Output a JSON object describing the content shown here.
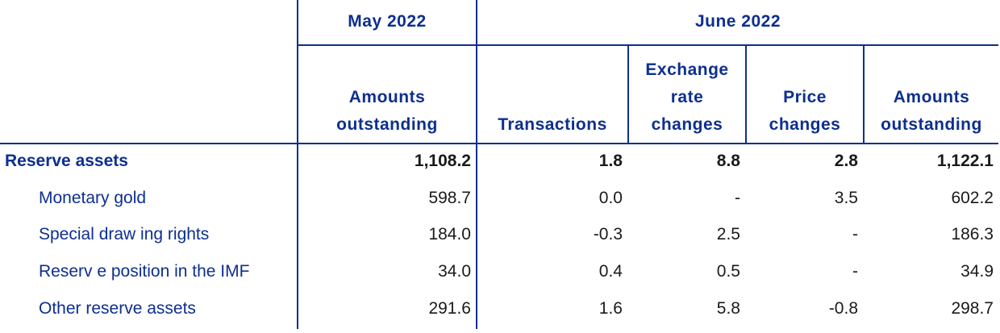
{
  "header": {
    "group_may": "May 2022",
    "group_june": "June 2022",
    "columns": [
      {
        "line1": "",
        "line2": "Amounts",
        "line3": "outstanding"
      },
      {
        "line1": "",
        "line2": "",
        "line3": "Transactions"
      },
      {
        "line1": "Exchange",
        "line2": "rate",
        "line3": "changes"
      },
      {
        "line1": "",
        "line2": "Price",
        "line3": "changes"
      },
      {
        "line1": "",
        "line2": "Amounts",
        "line3": "outstanding"
      }
    ]
  },
  "rows": [
    {
      "label": "Reserve assets",
      "values": [
        "1,108.2",
        "1.8",
        "8.8",
        "2.8",
        "1,122.1"
      ]
    },
    {
      "label": "Monetary gold",
      "values": [
        "598.7",
        "0.0",
        "-",
        "3.5",
        "602.2"
      ]
    },
    {
      "label": "Special draw ing rights",
      "values": [
        "184.0",
        "-0.3",
        "2.5",
        "-",
        "186.3"
      ]
    },
    {
      "label": "Reserv e position in the IMF",
      "values": [
        "34.0",
        "0.4",
        "0.5",
        "-",
        "34.9"
      ]
    },
    {
      "label": "Other reserve assets",
      "values": [
        "291.6",
        "1.6",
        "5.8",
        "-0.8",
        "298.7"
      ]
    }
  ],
  "colors": {
    "accent": "#0d2f8f",
    "text": "#1a1a1a"
  }
}
